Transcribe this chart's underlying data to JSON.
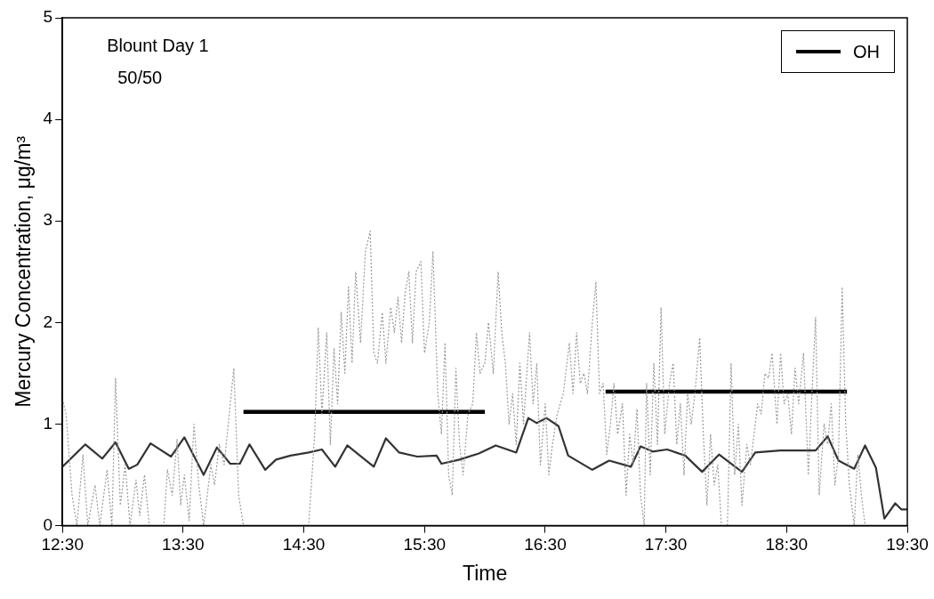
{
  "chart_data": {
    "type": "line",
    "xlabel": "Time",
    "ylabel": "Mercury Concentration, μg/m³",
    "annotations": [
      "Blount Day 1",
      "50/50"
    ],
    "xlim": [
      12.5,
      19.5
    ],
    "xticks": [
      {
        "value": 12.5,
        "label": "12:30"
      },
      {
        "value": 13.5,
        "label": "13:30"
      },
      {
        "value": 14.5,
        "label": "14:30"
      },
      {
        "value": 15.5,
        "label": "15:30"
      },
      {
        "value": 16.5,
        "label": "16:30"
      },
      {
        "value": 17.5,
        "label": "17:30"
      },
      {
        "value": 18.5,
        "label": "18:30"
      },
      {
        "value": 19.5,
        "label": "19:30"
      }
    ],
    "ylim": [
      0,
      5
    ],
    "yticks": [
      0,
      1,
      2,
      3,
      4,
      5
    ],
    "grid": false,
    "legend": "top right",
    "marker": "none",
    "series": [
      {
        "color": "#999999",
        "line_style": "dotted",
        "x": [
          12.5,
          12.53,
          12.58,
          12.62,
          12.67,
          12.71,
          12.77,
          12.81,
          12.87,
          12.91,
          12.94,
          12.98,
          13.02,
          13.06,
          13.11,
          13.14,
          13.18,
          13.22,
          13.34,
          13.37,
          13.41,
          13.45,
          13.48,
          13.51,
          13.55,
          13.59,
          13.63,
          13.67,
          13.73,
          13.76,
          13.8,
          13.84,
          13.92,
          13.96,
          14.0,
          14.54,
          14.59,
          14.62,
          14.65,
          14.69,
          14.72,
          14.75,
          14.78,
          14.81,
          14.84,
          14.87,
          14.9,
          14.93,
          14.97,
          15.01,
          15.05,
          15.08,
          15.11,
          15.15,
          15.18,
          15.22,
          15.25,
          15.28,
          15.31,
          15.34,
          15.37,
          15.4,
          15.43,
          15.47,
          15.5,
          15.54,
          15.57,
          15.61,
          15.64,
          15.67,
          15.7,
          15.73,
          15.76,
          15.79,
          15.82,
          15.86,
          15.9,
          15.93,
          15.96,
          16.0,
          16.03,
          16.07,
          16.11,
          16.14,
          16.17,
          16.2,
          16.23,
          16.26,
          16.29,
          16.32,
          16.37,
          16.4,
          16.43,
          16.46,
          16.5,
          16.53,
          16.56,
          16.6,
          16.65,
          16.7,
          16.73,
          16.76,
          16.79,
          16.82,
          16.85,
          16.89,
          16.92,
          16.95,
          16.98,
          17.01,
          17.04,
          17.07,
          17.1,
          17.14,
          17.17,
          17.2,
          17.23,
          17.26,
          17.29,
          17.32,
          17.34,
          17.37,
          17.4,
          17.43,
          17.46,
          17.49,
          17.53,
          17.56,
          17.59,
          17.62,
          17.65,
          17.68,
          17.71,
          17.74,
          17.78,
          17.81,
          17.84,
          17.87,
          17.9,
          17.93,
          17.96,
          18.01,
          18.04,
          18.07,
          18.1,
          18.13,
          18.17,
          18.2,
          18.23,
          18.26,
          18.29,
          18.32,
          18.35,
          18.38,
          18.42,
          18.45,
          18.48,
          18.51,
          18.54,
          18.57,
          18.6,
          18.64,
          18.68,
          18.71,
          18.74,
          18.77,
          18.81,
          18.84,
          18.87,
          18.9,
          18.93,
          18.96,
          18.99,
          19.02,
          19.06,
          19.09,
          19.12,
          19.15
        ],
        "values": [
          1.25,
          1.1,
          0.3,
          0,
          0.7,
          0,
          0.4,
          0,
          0.55,
          0,
          1.45,
          0.2,
          0.6,
          0,
          0.45,
          0.1,
          0.5,
          0,
          0,
          0.55,
          0.3,
          0.85,
          0.2,
          0.5,
          0.05,
          1.0,
          0.4,
          0,
          0.6,
          0.4,
          0.8,
          0.6,
          1.55,
          0.3,
          0,
          0,
          0.9,
          1.95,
          1.1,
          1.9,
          0.8,
          1.75,
          1.2,
          2.1,
          1.5,
          2.35,
          1.6,
          2.5,
          1.8,
          2.7,
          2.9,
          1.7,
          1.6,
          2.1,
          1.6,
          2.15,
          1.9,
          2.25,
          1.8,
          2.3,
          2.5,
          1.8,
          2.5,
          2.6,
          1.7,
          2.0,
          2.7,
          1.3,
          0.9,
          1.8,
          0.5,
          0.3,
          1.55,
          0.8,
          0.5,
          1.1,
          1.2,
          1.9,
          1.5,
          1.6,
          2.0,
          1.5,
          2.5,
          1.9,
          1.6,
          1.0,
          1.3,
          0.8,
          1.6,
          1.0,
          1.9,
          1.2,
          1.6,
          0.6,
          1.2,
          0.5,
          0.8,
          1.1,
          1.3,
          1.8,
          1.3,
          1.9,
          1.4,
          1.5,
          1.3,
          2.0,
          2.4,
          1.3,
          1.4,
          0.7,
          1.0,
          1.4,
          0.9,
          1.2,
          0.3,
          0.9,
          0.6,
          1.15,
          0.3,
          0,
          1.4,
          0.5,
          1.6,
          0.8,
          2.15,
          0.9,
          1.4,
          1.6,
          0.8,
          1.2,
          0.5,
          1.3,
          1.0,
          1.3,
          1.85,
          0.9,
          0.2,
          0.9,
          0.4,
          0.6,
          0,
          0,
          1.6,
          0.5,
          1.0,
          0.2,
          0.8,
          0.6,
          0.9,
          1.2,
          1.1,
          1.5,
          1.45,
          1.7,
          1.0,
          1.7,
          1.2,
          1.3,
          0.9,
          1.55,
          1.2,
          1.7,
          0.5,
          1.3,
          2.05,
          0.3,
          1.0,
          0.8,
          1.2,
          0.4,
          0.7,
          2.35,
          1.0,
          0.4,
          0,
          0.7,
          0.3,
          0
        ]
      },
      {
        "color": "#333333",
        "x": [
          12.5,
          12.69,
          12.83,
          12.94,
          13.05,
          13.12,
          13.23,
          13.4,
          13.51,
          13.67,
          13.78,
          13.89,
          13.97,
          14.05,
          14.18,
          14.27,
          14.39,
          14.54,
          14.65,
          14.76,
          14.86,
          15.08,
          15.18,
          15.29,
          15.44,
          15.6,
          15.64,
          15.79,
          15.95,
          16.09,
          16.26,
          16.36,
          16.43,
          16.51,
          16.61,
          16.69,
          16.89,
          17.03,
          17.21,
          17.29,
          17.39,
          17.51,
          17.66,
          17.8,
          17.94,
          18.13,
          18.24,
          18.45,
          18.74,
          18.84,
          18.93,
          19.06,
          19.15,
          19.24,
          19.31,
          19.4,
          19.45,
          19.5
        ],
        "values": [
          0.58,
          0.8,
          0.66,
          0.82,
          0.56,
          0.6,
          0.81,
          0.68,
          0.87,
          0.5,
          0.77,
          0.61,
          0.61,
          0.8,
          0.55,
          0.65,
          0.69,
          0.72,
          0.75,
          0.58,
          0.79,
          0.58,
          0.86,
          0.72,
          0.68,
          0.69,
          0.61,
          0.65,
          0.71,
          0.79,
          0.72,
          1.06,
          1.01,
          1.06,
          0.98,
          0.69,
          0.55,
          0.64,
          0.58,
          0.78,
          0.73,
          0.75,
          0.69,
          0.53,
          0.7,
          0.53,
          0.72,
          0.74,
          0.74,
          0.88,
          0.64,
          0.56,
          0.79,
          0.57,
          0.07,
          0.22,
          0.16,
          0.16
        ]
      },
      {
        "name": "OH",
        "color": "#000000",
        "x": [
          14.0,
          16.0,
          16.5,
          17.0,
          19.0
        ],
        "values": [
          1.12,
          1.12,
          null,
          1.32,
          1.32
        ]
      }
    ]
  }
}
